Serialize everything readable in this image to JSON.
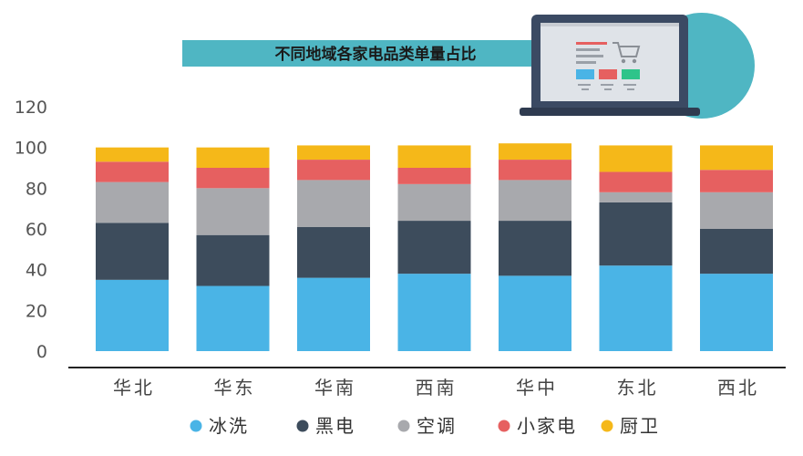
{
  "chart_data": {
    "type": "bar",
    "stacked": true,
    "title": "不同地域各家电品类单量占比",
    "xlabel": "",
    "ylabel": "",
    "ylim": [
      0,
      120
    ],
    "yticks": [
      0,
      20,
      40,
      60,
      80,
      100,
      120
    ],
    "grid": false,
    "legend_position": "bottom",
    "categories": [
      "华北",
      "华东",
      "华南",
      "西南",
      "华中",
      "东北",
      "西北"
    ],
    "series": [
      {
        "name": "冰洗",
        "color": "#4ab4e6",
        "values": [
          35,
          32,
          36,
          38,
          37,
          42,
          38
        ]
      },
      {
        "name": "黑电",
        "color": "#3d4c5c",
        "values": [
          28,
          25,
          25,
          26,
          27,
          31,
          22
        ]
      },
      {
        "name": "空调",
        "color": "#a8a9ad",
        "values": [
          20,
          23,
          23,
          18,
          20,
          5,
          18
        ]
      },
      {
        "name": "小家电",
        "color": "#e66060",
        "values": [
          10,
          10,
          10,
          8,
          10,
          10,
          11
        ]
      },
      {
        "name": "厨卫",
        "color": "#f5b819",
        "values": [
          7,
          10,
          7,
          11,
          8,
          13,
          12
        ]
      }
    ]
  },
  "colors": {
    "banner": "#4fb6c3",
    "axis": "#222222",
    "laptop_frame": "#3b4a63",
    "screen_bg": "#dfe3e8"
  },
  "icons": {
    "header_illustration": "laptop-shopping-cart-icon"
  }
}
